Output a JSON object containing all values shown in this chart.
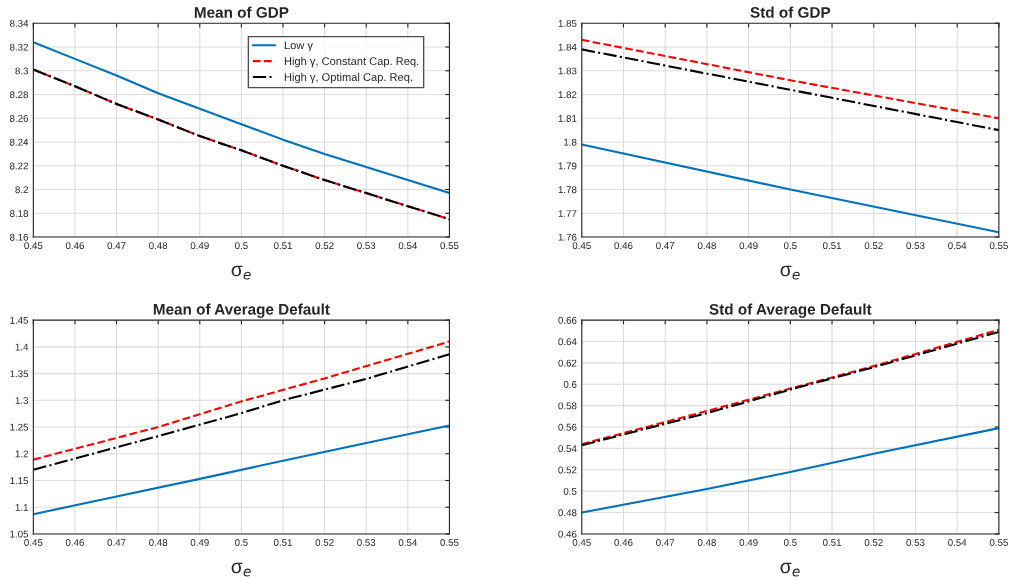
{
  "chart_data": [
    {
      "type": "line",
      "title": "Mean of GDP",
      "xlabel": "σ$_{e}$",
      "xlim": [
        0.45,
        0.55
      ],
      "xticks": [
        0.45,
        0.46,
        0.47,
        0.48,
        0.49,
        0.5,
        0.51,
        0.52,
        0.53,
        0.54,
        0.55
      ],
      "ylim": [
        8.16,
        8.34
      ],
      "yticks": [
        8.16,
        8.18,
        8.2,
        8.22,
        8.24,
        8.26,
        8.28,
        8.3,
        8.32,
        8.34
      ],
      "grid": true,
      "legend": "top right",
      "x": [
        0.45,
        0.46,
        0.47,
        0.48,
        0.49,
        0.5,
        0.51,
        0.52,
        0.53,
        0.54,
        0.55
      ],
      "series": [
        {
          "name": "Low γ",
          "color": "#0072bd",
          "line_style": "solid",
          "values": [
            8.324,
            8.31,
            8.296,
            8.281,
            8.268,
            8.255,
            8.242,
            8.23,
            8.219,
            8.208,
            8.197
          ]
        },
        {
          "name": "High γ, Constant Cap. Req.",
          "color": "#ff0000",
          "line_style": "dashed",
          "values": [
            8.301,
            8.287,
            8.272,
            8.259,
            8.245,
            8.233,
            8.22,
            8.208,
            8.197,
            8.186,
            8.175
          ]
        },
        {
          "name": "High γ, Optimal Cap. Req.",
          "color": "#000000",
          "line_style": "dashdot",
          "values": [
            8.301,
            8.287,
            8.272,
            8.259,
            8.245,
            8.233,
            8.22,
            8.208,
            8.197,
            8.186,
            8.175
          ]
        }
      ]
    },
    {
      "type": "line",
      "title": "Std of GDP",
      "xlabel": "σ$_{e}$",
      "xlim": [
        0.45,
        0.55
      ],
      "xticks": [
        0.45,
        0.46,
        0.47,
        0.48,
        0.49,
        0.5,
        0.51,
        0.52,
        0.53,
        0.54,
        0.55
      ],
      "ylim": [
        1.76,
        1.85
      ],
      "yticks": [
        1.76,
        1.77,
        1.78,
        1.79,
        1.8,
        1.81,
        1.82,
        1.83,
        1.84,
        1.85
      ],
      "grid": true,
      "x": [
        0.45,
        0.5,
        0.55
      ],
      "series": [
        {
          "color": "#0072bd",
          "line_style": "solid",
          "values": [
            1.799,
            1.78,
            1.762
          ]
        },
        {
          "color": "#ff0000",
          "line_style": "dashed",
          "values": [
            1.843,
            1.826,
            1.81
          ]
        },
        {
          "color": "#000000",
          "line_style": "dashdot",
          "values": [
            1.839,
            1.822,
            1.805
          ]
        }
      ]
    },
    {
      "type": "line",
      "title": "Mean of Average Default",
      "xlabel": "σ$_{e}$",
      "xlim": [
        0.45,
        0.55
      ],
      "xticks": [
        0.45,
        0.46,
        0.47,
        0.48,
        0.49,
        0.5,
        0.51,
        0.52,
        0.53,
        0.54,
        0.55
      ],
      "ylim": [
        1.05,
        1.45
      ],
      "yticks": [
        1.05,
        1.1,
        1.15,
        1.2,
        1.25,
        1.3,
        1.35,
        1.4,
        1.45
      ],
      "grid": true,
      "series": [
        {
          "color": "#0072bd",
          "line_style": "solid",
          "x": [
            0.45,
            0.47,
            0.49,
            0.51,
            0.53,
            0.55
          ],
          "values": [
            1.087,
            1.12,
            1.153,
            1.187,
            1.22,
            1.253
          ]
        },
        {
          "color": "#ff0000",
          "line_style": "dashed",
          "x": [
            0.45,
            0.48,
            0.5,
            0.52,
            0.55
          ],
          "values": [
            1.189,
            1.25,
            1.298,
            1.341,
            1.41
          ]
        },
        {
          "color": "#000000",
          "line_style": "dashdot",
          "x": [
            0.45,
            0.48,
            0.5,
            0.51,
            0.53,
            0.55
          ],
          "values": [
            1.17,
            1.233,
            1.276,
            1.3,
            1.34,
            1.386
          ]
        }
      ]
    },
    {
      "type": "line",
      "title": "Std of Average Default",
      "xlabel": "σ$_{e}$",
      "xlim": [
        0.45,
        0.55
      ],
      "xticks": [
        0.45,
        0.46,
        0.47,
        0.48,
        0.49,
        0.5,
        0.51,
        0.52,
        0.53,
        0.54,
        0.55
      ],
      "ylim": [
        0.46,
        0.66
      ],
      "yticks": [
        0.46,
        0.48,
        0.5,
        0.52,
        0.54,
        0.56,
        0.58,
        0.6,
        0.62,
        0.64,
        0.66
      ],
      "grid": true,
      "x": [
        0.45,
        0.48,
        0.5,
        0.52,
        0.55
      ],
      "series": [
        {
          "color": "#0072bd",
          "line_style": "solid",
          "values": [
            0.48,
            0.502,
            0.518,
            0.535,
            0.559
          ]
        },
        {
          "color": "#ff0000",
          "line_style": "dashed",
          "values": [
            0.544,
            0.575,
            0.596,
            0.617,
            0.651
          ]
        },
        {
          "color": "#000000",
          "line_style": "dashdot",
          "values": [
            0.543,
            0.573,
            0.595,
            0.616,
            0.649
          ]
        }
      ]
    }
  ]
}
